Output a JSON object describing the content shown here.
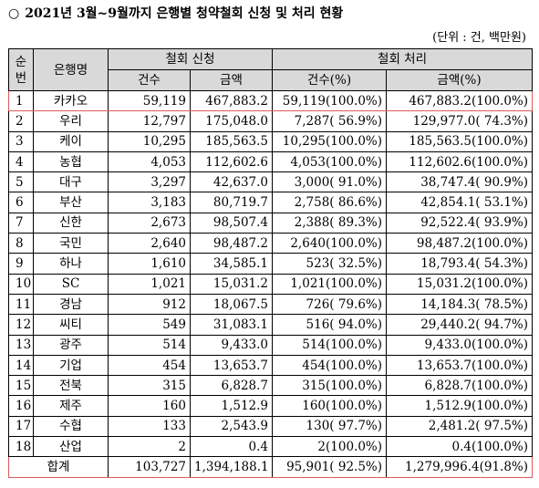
{
  "title": "2021년 3월~9월까지 은행별 청약철회 신청 및 처리 현황",
  "title_bullet": "○",
  "unit": "(단위 : 건, 백만원)",
  "headers": {
    "no_line1": "순",
    "no_line2": "번",
    "bank": "은행명",
    "request_group": "철회 신청",
    "process_group": "철회 처리",
    "req_count": "건수",
    "req_amount": "금액",
    "proc_count": "건수(%)",
    "proc_amount": "금액(%)"
  },
  "rows": [
    {
      "no": "1",
      "bank": "카카오",
      "req_count": "59,119",
      "req_amount": "467,883.2",
      "proc_count": "59,119(100.0%)",
      "proc_amount": "467,883.2(100.0%)"
    },
    {
      "no": "2",
      "bank": "우리",
      "req_count": "12,797",
      "req_amount": "175,048.0",
      "proc_count": "7,287( 56.9%)",
      "proc_amount": "129,977.0( 74.3%)"
    },
    {
      "no": "3",
      "bank": "케이",
      "req_count": "10,295",
      "req_amount": "185,563.5",
      "proc_count": "10,295(100.0%)",
      "proc_amount": "185,563.5(100.0%)"
    },
    {
      "no": "4",
      "bank": "농협",
      "req_count": "4,053",
      "req_amount": "112,602.6",
      "proc_count": "4,053(100.0%)",
      "proc_amount": "112,602.6(100.0%)"
    },
    {
      "no": "5",
      "bank": "대구",
      "req_count": "3,297",
      "req_amount": "42,637.0",
      "proc_count": "3,000( 91.0%)",
      "proc_amount": "38,747.4( 90.9%)"
    },
    {
      "no": "6",
      "bank": "부산",
      "req_count": "3,183",
      "req_amount": "80,719.7",
      "proc_count": "2,758( 86.6%)",
      "proc_amount": "42,854.1( 53.1%)"
    },
    {
      "no": "7",
      "bank": "신한",
      "req_count": "2,673",
      "req_amount": "98,507.4",
      "proc_count": "2,388( 89.3%)",
      "proc_amount": "92,522.4( 93.9%)"
    },
    {
      "no": "8",
      "bank": "국민",
      "req_count": "2,640",
      "req_amount": "98,487.2",
      "proc_count": "2,640(100.0%)",
      "proc_amount": "98,487.2(100.0%)"
    },
    {
      "no": "9",
      "bank": "하나",
      "req_count": "1,610",
      "req_amount": "34,585.1",
      "proc_count": "523( 32.5%)",
      "proc_amount": "18,793.4( 54.3%)"
    },
    {
      "no": "10",
      "bank": "SC",
      "req_count": "1,021",
      "req_amount": "15,031.2",
      "proc_count": "1,021(100.0%)",
      "proc_amount": "15,031.2(100.0%)"
    },
    {
      "no": "11",
      "bank": "경남",
      "req_count": "912",
      "req_amount": "18,067.5",
      "proc_count": "726( 79.6%)",
      "proc_amount": "14,184.3( 78.5%)"
    },
    {
      "no": "12",
      "bank": "씨티",
      "req_count": "549",
      "req_amount": "31,083.1",
      "proc_count": "516( 94.0%)",
      "proc_amount": "29,440.2( 94.7%)"
    },
    {
      "no": "13",
      "bank": "광주",
      "req_count": "514",
      "req_amount": "9,433.0",
      "proc_count": "514(100.0%)",
      "proc_amount": "9,433.0(100.0%)"
    },
    {
      "no": "14",
      "bank": "기업",
      "req_count": "454",
      "req_amount": "13,653.7",
      "proc_count": "454(100.0%)",
      "proc_amount": "13,653.7(100.0%)"
    },
    {
      "no": "15",
      "bank": "전북",
      "req_count": "315",
      "req_amount": "6,828.7",
      "proc_count": "315(100.0%)",
      "proc_amount": "6,828.7(100.0%)"
    },
    {
      "no": "16",
      "bank": "제주",
      "req_count": "160",
      "req_amount": "1,512.9",
      "proc_count": "160(100.0%)",
      "proc_amount": "1,512.9(100.0%)"
    },
    {
      "no": "17",
      "bank": "수협",
      "req_count": "133",
      "req_amount": "2,543.9",
      "proc_count": "130( 97.7%)",
      "proc_amount": "2,481.2( 97.5%)"
    },
    {
      "no": "18",
      "bank": "산업",
      "req_count": "2",
      "req_amount": "0.4",
      "proc_count": "2(100.0%)",
      "proc_amount": "0.4(100.0%)"
    }
  ],
  "total": {
    "label": "합계",
    "req_count": "103,727",
    "req_amount": "1,394,188.1",
    "proc_count": "95,901( 92.5%)",
    "proc_amount": "1,279,996.4(91.8%)"
  },
  "highlight_color": "#e05a5a",
  "header_bg": "#d9d9d9"
}
